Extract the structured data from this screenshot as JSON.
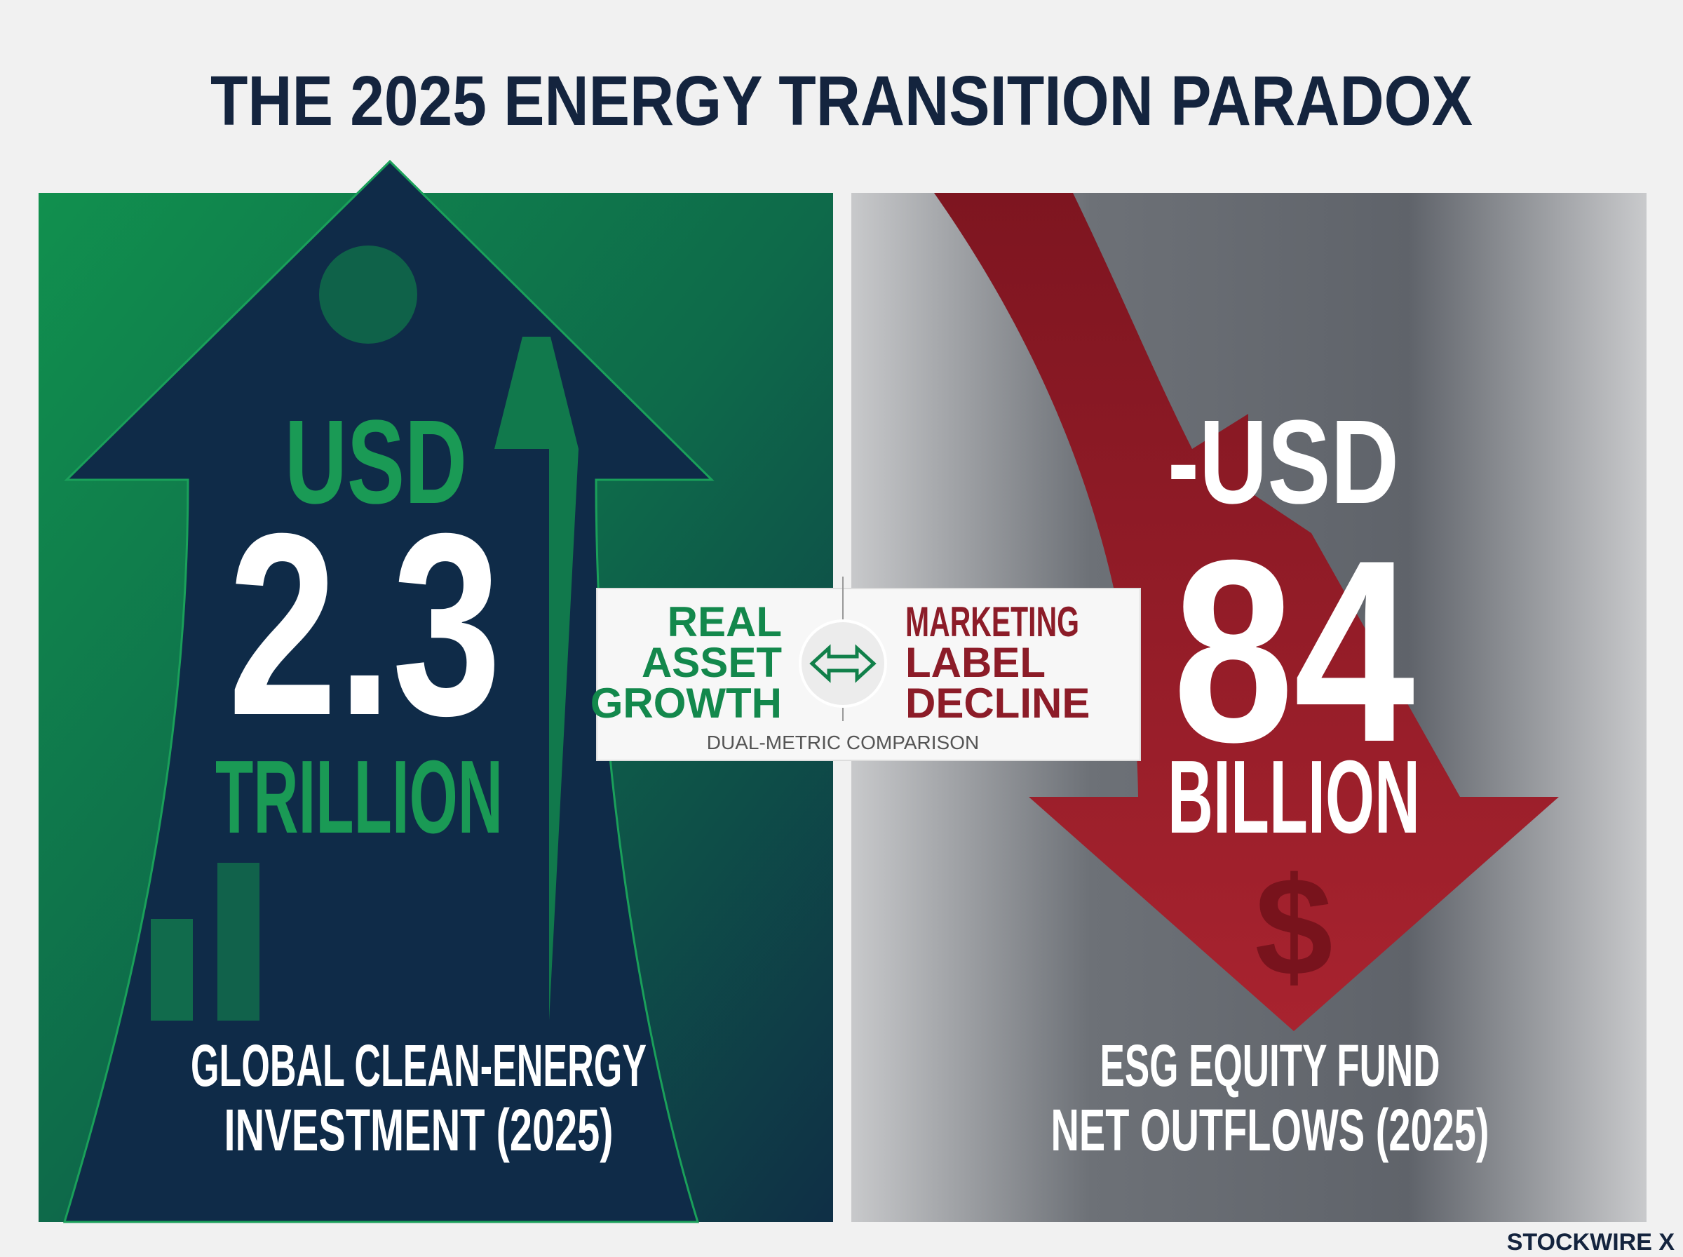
{
  "header": {
    "title": "THE 2025 ENERGY TRANSITION PARADOX"
  },
  "left_panel": {
    "prefix": "USD",
    "figure": "2.3",
    "unit": "TRILLION",
    "caption": [
      "GLOBAL CLEAN-ENERGY",
      "INVESTMENT (2025)"
    ]
  },
  "right_panel": {
    "prefix": "-USD",
    "figure": "84",
    "unit": "BILLION",
    "caption": [
      "ESG EQUITY FUND",
      "NET OUTFLOWS (2025)"
    ]
  },
  "comparison": {
    "left_label": [
      "REAL",
      "ASSET",
      "GROWTH"
    ],
    "right_label": [
      "MARKETING",
      "LABEL",
      "DECLINE"
    ],
    "caption": "DUAL-METRIC COMPARISON"
  },
  "footer": {
    "brand": "STOCKWIRE X"
  }
}
